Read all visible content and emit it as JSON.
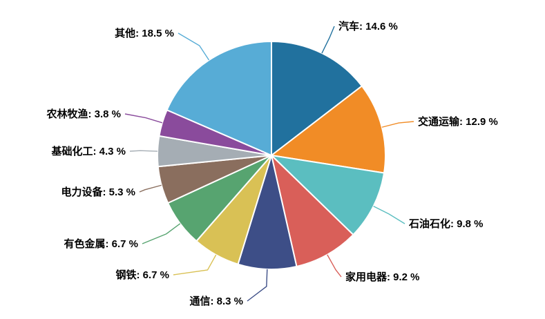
{
  "chart_data": {
    "type": "pie",
    "title": "",
    "legend_position": "none",
    "start_angle_deg": 0,
    "direction": "clockwise",
    "label_format": "{name}: {value} %",
    "background_color": "#ffffff",
    "label_text_color": "#000000",
    "slices": [
      {
        "name": "汽车",
        "value": 14.6,
        "label": "汽车: 14.6 %",
        "color": "#21719E"
      },
      {
        "name": "交通运输",
        "value": 12.9,
        "label": "交通运输: 12.9 %",
        "color": "#F18C26"
      },
      {
        "name": "石油石化",
        "value": 9.8,
        "label": "石油石化: 9.8 %",
        "color": "#5BBEC0"
      },
      {
        "name": "家用电器",
        "value": 9.2,
        "label": "家用电器: 9.2 %",
        "color": "#D95F59"
      },
      {
        "name": "通信",
        "value": 8.3,
        "label": "通信: 8.3 %",
        "color": "#3D4E87"
      },
      {
        "name": "钢铁",
        "value": 6.7,
        "label": "钢铁: 6.7 %",
        "color": "#D9C155"
      },
      {
        "name": "有色金属",
        "value": 6.7,
        "label": "有色金属: 6.7 %",
        "color": "#57A470"
      },
      {
        "name": "电力设备",
        "value": 5.3,
        "label": "电力设备: 5.3 %",
        "color": "#8A6E5E"
      },
      {
        "name": "基础化工",
        "value": 4.3,
        "label": "基础化工: 4.3 %",
        "color": "#A5ADB4"
      },
      {
        "name": "农林牧渔",
        "value": 3.8,
        "label": "农林牧渔: 3.8 %",
        "color": "#8A4B9C"
      },
      {
        "name": "其他",
        "value": 18.5,
        "label": "其他: 18.5 %",
        "color": "#57ACD6"
      }
    ]
  }
}
